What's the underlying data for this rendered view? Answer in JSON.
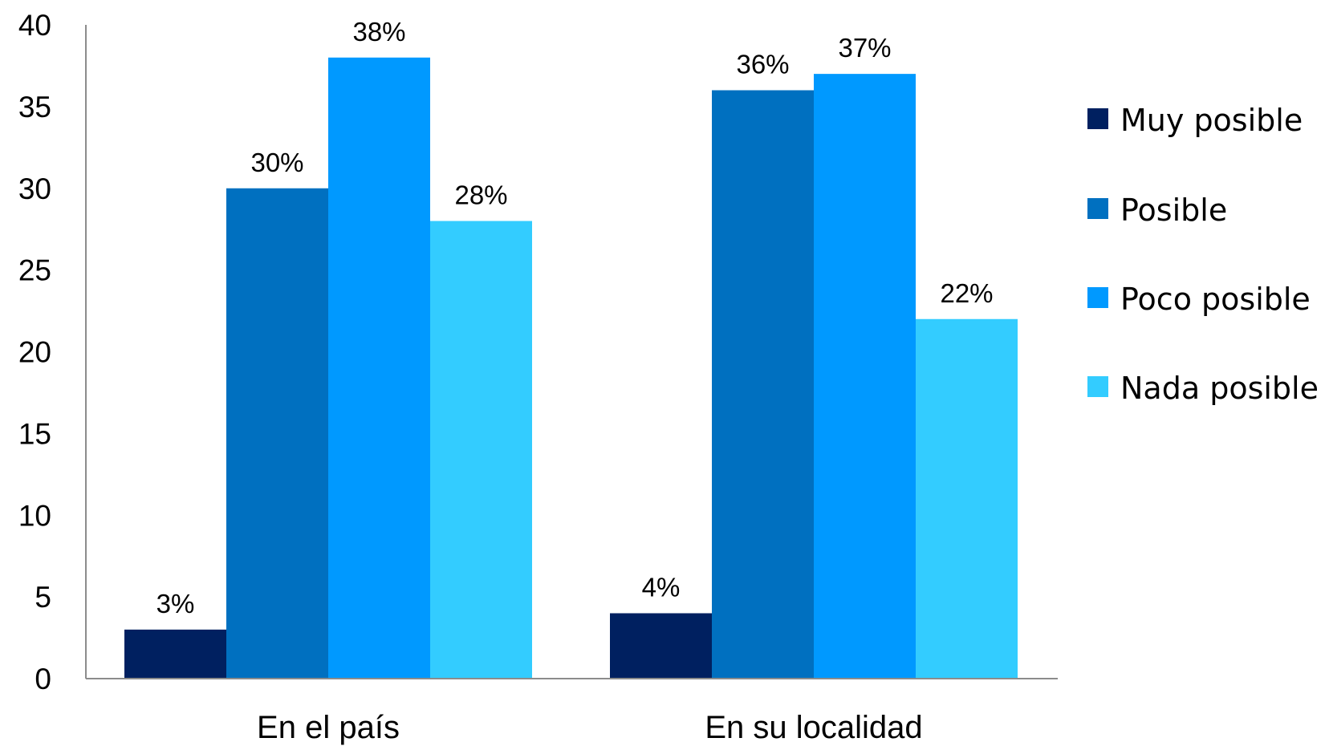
{
  "chart_data": {
    "type": "bar",
    "categories": [
      "En el país",
      "En su localidad"
    ],
    "series": [
      {
        "name": "Muy posible",
        "values": [
          3,
          4
        ],
        "labels": [
          "3%",
          "4%"
        ],
        "color": "#002060"
      },
      {
        "name": "Posible",
        "values": [
          30,
          36
        ],
        "labels": [
          "30%",
          "36%"
        ],
        "color": "#0070C0"
      },
      {
        "name": "Poco posible",
        "values": [
          38,
          37
        ],
        "labels": [
          "38%",
          "37%"
        ],
        "color": "#0099FF"
      },
      {
        "name": "Nada posible",
        "values": [
          28,
          22
        ],
        "labels": [
          "28%",
          "22%"
        ],
        "color": "#33CCFF"
      }
    ],
    "yticks": [
      "0",
      "5",
      "10",
      "15",
      "20",
      "25",
      "30",
      "35",
      "40"
    ],
    "ylim": [
      0,
      40
    ],
    "grid": false,
    "legend_position": "right"
  }
}
